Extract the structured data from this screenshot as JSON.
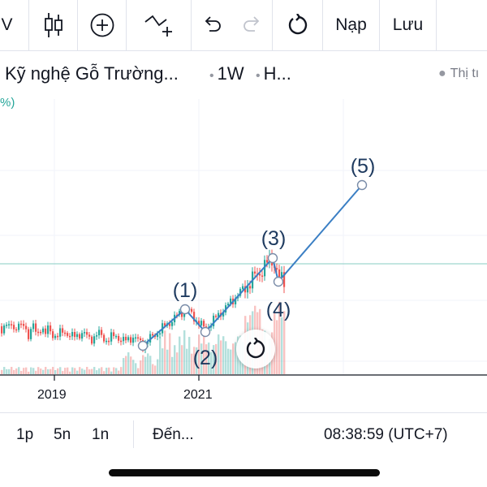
{
  "toolbar": {
    "partial_label": "V",
    "indicators_label": "Nạp",
    "save_label": "Lưu"
  },
  "symbol": {
    "name": "Kỹ nghệ Gỗ Trường...",
    "interval": "1W",
    "chart_type": "H...",
    "market_status": "Thị tı",
    "percent_label": "%)"
  },
  "chart_data": {
    "type": "line",
    "x_tick_labels": [
      "2019",
      "2021"
    ],
    "wave_labels": [
      "(1)",
      "(2)",
      "(3)",
      "(4)",
      "(5)"
    ],
    "annotation": "Elliott impulse wave (1)-(5) drawn over weekly candlestick price with volume bars",
    "colors": {
      "up": "#26a69a",
      "down": "#ef5350",
      "wave_line": "#2962ff",
      "wave_text": "#1e3a5f"
    }
  },
  "bottom_bar": {
    "range_1": "1p",
    "range_2": "5n",
    "range_3": "1n",
    "goto_label": "Đến...",
    "clock": "08:38:59 (UTC+7)"
  },
  "icons": [
    "candles-icon",
    "plus-circle-icon",
    "drawing-tool-icon",
    "undo-icon",
    "redo-icon",
    "reset-icon"
  ]
}
